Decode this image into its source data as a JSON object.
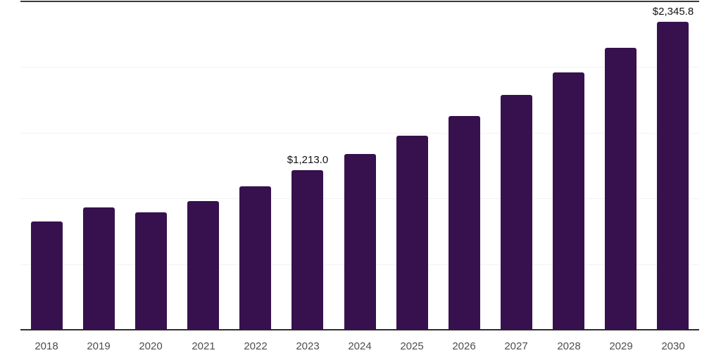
{
  "chart_data": {
    "type": "bar",
    "title": "",
    "xlabel": "",
    "ylabel": "",
    "categories": [
      "2018",
      "2019",
      "2020",
      "2021",
      "2022",
      "2023",
      "2024",
      "2025",
      "2026",
      "2027",
      "2028",
      "2029",
      "2030"
    ],
    "values": [
      823,
      930,
      894,
      980,
      1091,
      1213.0,
      1337,
      1477,
      1627,
      1788,
      1961,
      2149,
      2345.8
    ],
    "data_labels": [
      {
        "index": 5,
        "text": "$1,213.0"
      },
      {
        "index": 12,
        "text": "$2,345.8"
      }
    ],
    "ylim": [
      0,
      2500
    ],
    "grid_interval": 500,
    "grid": "horizontal-only",
    "legend": "none",
    "y_tick_labels": "none",
    "colors": {
      "bar": "#36114E",
      "axis_line": "#2E2E2E",
      "top_border": "#3A3A3A",
      "gridline": "#F2F2F2",
      "tick_label": "#4D4D4D",
      "value_label": "#111111",
      "background": "#FFFFFF"
    }
  }
}
